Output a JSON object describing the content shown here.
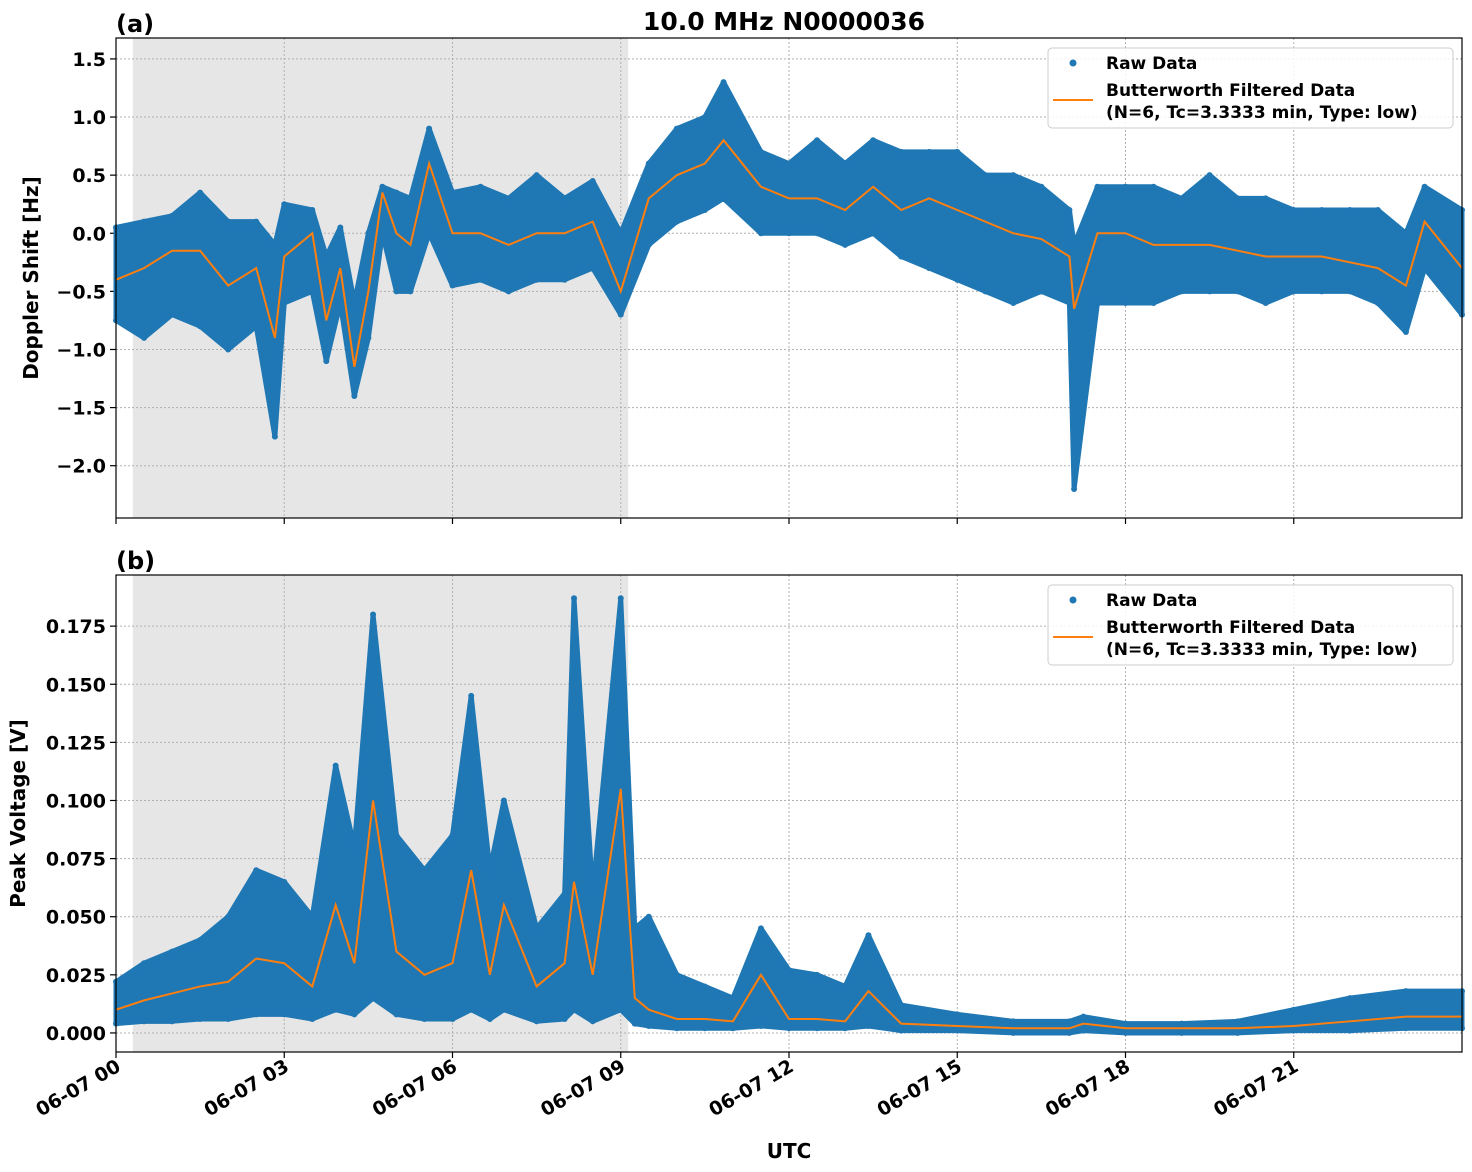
{
  "chart_data": {
    "title": "10.0 MHz N0000036",
    "xlabel": "UTC",
    "x_tick_labels": [
      "06-07 00",
      "06-07 03",
      "06-07 06",
      "06-07 09",
      "06-07 12",
      "06-07 15",
      "06-07 18",
      "06-07 21"
    ],
    "xlim": [
      "06-07 00:00",
      "06-08 00:00"
    ],
    "shaded_span": [
      "06-07 00:18",
      "06-07 09:08"
    ],
    "colors": {
      "raw": "#1f77b4",
      "filtered": "#ff7f0e",
      "shade": "#e6e6e6"
    },
    "panels": [
      {
        "label": "(a)",
        "type": "scatter",
        "ylabel": "Doppler Shift [Hz]",
        "ylim": [
          -2.45,
          1.68
        ],
        "yticks": [
          1.5,
          1.0,
          0.5,
          0.0,
          -0.5,
          -1.0,
          -1.5,
          -2.0
        ],
        "ytick_labels": [
          "1.5",
          "1.0",
          "0.5",
          "0.0",
          "−0.5",
          "−1.0",
          "−1.5",
          "−2.0"
        ],
        "grid": true,
        "legend": {
          "position": "top-right",
          "entries": [
            "Raw Data",
            "Butterworth Filtered Data",
            "(N=6, Tc=3.3333 min, Type: low)"
          ]
        },
        "series": [
          {
            "name": "Raw Data",
            "kind": "envelope",
            "columns": [
              "time",
              "min",
              "max"
            ]
          },
          {
            "name": "Butterworth Filtered Data",
            "kind": "line"
          }
        ],
        "points": [
          [
            "06-07 00:00",
            -0.4,
            -0.75,
            0.05
          ],
          [
            "06-07 00:30",
            -0.3,
            -0.9,
            0.1
          ],
          [
            "06-07 01:00",
            -0.15,
            -0.7,
            0.15
          ],
          [
            "06-07 01:30",
            -0.15,
            -0.8,
            0.35
          ],
          [
            "06-07 02:00",
            -0.45,
            -1.0,
            0.1
          ],
          [
            "06-07 02:30",
            -0.3,
            -0.8,
            0.1
          ],
          [
            "06-07 02:50",
            -0.9,
            -1.75,
            -0.1
          ],
          [
            "06-07 03:00",
            -0.2,
            -0.6,
            0.25
          ],
          [
            "06-07 03:30",
            0.0,
            -0.5,
            0.2
          ],
          [
            "06-07 03:45",
            -0.75,
            -1.1,
            -0.2
          ],
          [
            "06-07 04:00",
            -0.3,
            -0.6,
            0.05
          ],
          [
            "06-07 04:15",
            -1.15,
            -1.4,
            -0.6
          ],
          [
            "06-07 04:30",
            -0.5,
            -0.9,
            0.0
          ],
          [
            "06-07 04:45",
            0.35,
            0.0,
            0.4
          ],
          [
            "06-07 05:00",
            0.0,
            -0.5,
            0.35
          ],
          [
            "06-07 05:15",
            -0.1,
            -0.5,
            0.3
          ],
          [
            "06-07 05:35",
            0.6,
            0.0,
            0.9
          ],
          [
            "06-07 06:00",
            0.0,
            -0.45,
            0.35
          ],
          [
            "06-07 06:30",
            0.0,
            -0.4,
            0.4
          ],
          [
            "06-07 07:00",
            -0.1,
            -0.5,
            0.3
          ],
          [
            "06-07 07:30",
            0.0,
            -0.4,
            0.5
          ],
          [
            "06-07 08:00",
            0.0,
            -0.4,
            0.3
          ],
          [
            "06-07 08:30",
            0.1,
            -0.3,
            0.45
          ],
          [
            "06-07 09:00",
            -0.5,
            -0.7,
            0.0
          ],
          [
            "06-07 09:30",
            0.3,
            -0.1,
            0.6
          ],
          [
            "06-07 10:00",
            0.5,
            0.1,
            0.9
          ],
          [
            "06-07 10:30",
            0.6,
            0.2,
            1.0
          ],
          [
            "06-07 10:50",
            0.8,
            0.3,
            1.3
          ],
          [
            "06-07 11:30",
            0.4,
            0.0,
            0.7
          ],
          [
            "06-07 12:00",
            0.3,
            0.0,
            0.6
          ],
          [
            "06-07 12:30",
            0.3,
            0.0,
            0.8
          ],
          [
            "06-07 13:00",
            0.2,
            -0.1,
            0.6
          ],
          [
            "06-07 13:30",
            0.4,
            0.0,
            0.8
          ],
          [
            "06-07 14:00",
            0.2,
            -0.2,
            0.7
          ],
          [
            "06-07 14:30",
            0.3,
            -0.3,
            0.7
          ],
          [
            "06-07 15:00",
            0.2,
            -0.4,
            0.7
          ],
          [
            "06-07 15:30",
            0.1,
            -0.5,
            0.5
          ],
          [
            "06-07 16:00",
            0.0,
            -0.6,
            0.5
          ],
          [
            "06-07 16:30",
            -0.05,
            -0.5,
            0.4
          ],
          [
            "06-07 17:00",
            -0.2,
            -0.6,
            0.2
          ],
          [
            "06-07 17:05",
            -0.65,
            -2.2,
            -0.1
          ],
          [
            "06-07 17:30",
            0.0,
            -0.6,
            0.4
          ],
          [
            "06-07 18:00",
            0.0,
            -0.6,
            0.4
          ],
          [
            "06-07 18:30",
            -0.1,
            -0.6,
            0.4
          ],
          [
            "06-07 19:00",
            -0.1,
            -0.5,
            0.3
          ],
          [
            "06-07 19:30",
            -0.1,
            -0.5,
            0.5
          ],
          [
            "06-07 20:00",
            -0.15,
            -0.5,
            0.3
          ],
          [
            "06-07 20:30",
            -0.2,
            -0.6,
            0.3
          ],
          [
            "06-07 21:00",
            -0.2,
            -0.5,
            0.2
          ],
          [
            "06-07 21:30",
            -0.2,
            -0.5,
            0.2
          ],
          [
            "06-07 22:00",
            -0.25,
            -0.5,
            0.2
          ],
          [
            "06-07 22:30",
            -0.3,
            -0.6,
            0.2
          ],
          [
            "06-07 23:00",
            -0.45,
            -0.85,
            0.0
          ],
          [
            "06-07 23:20",
            0.1,
            -0.3,
            0.4
          ],
          [
            "06-08 00:00",
            -0.3,
            -0.7,
            0.2
          ]
        ]
      },
      {
        "label": "(b)",
        "type": "scatter",
        "ylabel": "Peak Voltage [V]",
        "ylim": [
          -0.0082,
          0.197
        ],
        "yticks": [
          0.0,
          0.025,
          0.05,
          0.075,
          0.1,
          0.125,
          0.15,
          0.175
        ],
        "ytick_labels": [
          "0.000",
          "0.025",
          "0.050",
          "0.075",
          "0.100",
          "0.125",
          "0.150",
          "0.175"
        ],
        "grid": true,
        "legend": {
          "position": "top-right",
          "entries": [
            "Raw Data",
            "Butterworth Filtered Data",
            "(N=6, Tc=3.3333 min, Type: low)"
          ]
        },
        "series": [
          {
            "name": "Raw Data",
            "kind": "envelope",
            "columns": [
              "time",
              "min",
              "max"
            ]
          },
          {
            "name": "Butterworth Filtered Data",
            "kind": "line"
          }
        ],
        "points": [
          [
            "06-07 00:00",
            0.01,
            0.004,
            0.022
          ],
          [
            "06-07 00:30",
            0.014,
            0.005,
            0.03
          ],
          [
            "06-07 01:00",
            0.017,
            0.005,
            0.035
          ],
          [
            "06-07 01:30",
            0.02,
            0.006,
            0.04
          ],
          [
            "06-07 02:00",
            0.022,
            0.006,
            0.05
          ],
          [
            "06-07 02:30",
            0.032,
            0.008,
            0.07
          ],
          [
            "06-07 03:00",
            0.03,
            0.008,
            0.065
          ],
          [
            "06-07 03:30",
            0.02,
            0.006,
            0.05
          ],
          [
            "06-07 03:55",
            0.055,
            0.01,
            0.115
          ],
          [
            "06-07 04:15",
            0.03,
            0.008,
            0.08
          ],
          [
            "06-07 04:35",
            0.1,
            0.015,
            0.18
          ],
          [
            "06-07 05:00",
            0.035,
            0.008,
            0.085
          ],
          [
            "06-07 05:30",
            0.025,
            0.006,
            0.07
          ],
          [
            "06-07 06:00",
            0.03,
            0.006,
            0.085
          ],
          [
            "06-07 06:20",
            0.07,
            0.01,
            0.145
          ],
          [
            "06-07 06:40",
            0.025,
            0.006,
            0.07
          ],
          [
            "06-07 06:55",
            0.055,
            0.01,
            0.1
          ],
          [
            "06-07 07:30",
            0.02,
            0.005,
            0.045
          ],
          [
            "06-07 08:00",
            0.03,
            0.006,
            0.06
          ],
          [
            "06-07 08:10",
            0.065,
            0.01,
            0.187
          ],
          [
            "06-07 08:30",
            0.025,
            0.005,
            0.06
          ],
          [
            "06-07 09:00",
            0.105,
            0.01,
            0.187
          ],
          [
            "06-07 09:15",
            0.015,
            0.004,
            0.045
          ],
          [
            "06-07 09:30",
            0.01,
            0.003,
            0.05
          ],
          [
            "06-07 10:00",
            0.006,
            0.002,
            0.025
          ],
          [
            "06-07 10:30",
            0.006,
            0.002,
            0.02
          ],
          [
            "06-07 11:00",
            0.005,
            0.002,
            0.015
          ],
          [
            "06-07 11:30",
            0.025,
            0.003,
            0.045
          ],
          [
            "06-07 12:00",
            0.006,
            0.002,
            0.027
          ],
          [
            "06-07 12:30",
            0.006,
            0.002,
            0.025
          ],
          [
            "06-07 13:00",
            0.005,
            0.002,
            0.02
          ],
          [
            "06-07 13:25",
            0.018,
            0.003,
            0.042
          ],
          [
            "06-07 14:00",
            0.004,
            0.001,
            0.012
          ],
          [
            "06-07 15:00",
            0.003,
            0.001,
            0.008
          ],
          [
            "06-07 16:00",
            0.002,
            0.0,
            0.005
          ],
          [
            "06-07 17:00",
            0.002,
            0.0,
            0.005
          ],
          [
            "06-07 17:15",
            0.004,
            0.001,
            0.007
          ],
          [
            "06-07 18:00",
            0.002,
            0.0,
            0.004
          ],
          [
            "06-07 19:00",
            0.002,
            0.0,
            0.004
          ],
          [
            "06-07 20:00",
            0.002,
            0.0,
            0.005
          ],
          [
            "06-07 21:00",
            0.003,
            0.001,
            0.01
          ],
          [
            "06-07 22:00",
            0.005,
            0.001,
            0.015
          ],
          [
            "06-07 23:00",
            0.007,
            0.002,
            0.018
          ],
          [
            "06-08 00:00",
            0.007,
            0.002,
            0.018
          ]
        ]
      }
    ]
  }
}
